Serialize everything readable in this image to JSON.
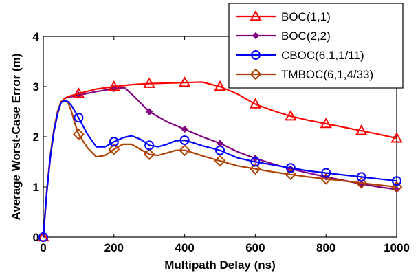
{
  "chart_data": {
    "type": "line",
    "xlabel": "Multipath Delay (ns)",
    "ylabel": "Average Worst-Case Error (m)",
    "xlim": [
      0,
      1000
    ],
    "ylim": [
      0,
      4
    ],
    "xticks": [
      0,
      200,
      400,
      600,
      800,
      1000
    ],
    "yticks": [
      0,
      1,
      2,
      3,
      4
    ],
    "grid": false,
    "legend_position": "top-right",
    "series": [
      {
        "name": "BOC(1,1)",
        "color": "#ff0000",
        "marker": "triangle",
        "x": [
          0,
          10,
          20,
          30,
          40,
          50,
          60,
          70,
          80,
          90,
          100,
          150,
          200,
          250,
          300,
          350,
          400,
          450,
          500,
          550,
          600,
          650,
          700,
          750,
          800,
          850,
          900,
          950,
          1000
        ],
        "y": [
          0,
          0.9,
          1.6,
          2.1,
          2.45,
          2.68,
          2.76,
          2.8,
          2.82,
          2.84,
          2.86,
          2.95,
          3.0,
          3.04,
          3.06,
          3.07,
          3.08,
          3.09,
          3.0,
          2.85,
          2.65,
          2.52,
          2.41,
          2.33,
          2.26,
          2.19,
          2.12,
          2.05,
          1.97
        ],
        "marker_x": [
          0,
          100,
          200,
          300,
          400,
          500,
          600,
          700,
          800,
          900,
          1000
        ],
        "marker_y": [
          0,
          2.86,
          3.0,
          3.06,
          3.08,
          3.0,
          2.65,
          2.41,
          2.26,
          2.12,
          1.97
        ]
      },
      {
        "name": "BOC(2,2)",
        "color": "#800080",
        "marker": "diamond-filled",
        "x": [
          0,
          10,
          20,
          30,
          40,
          50,
          60,
          70,
          80,
          90,
          100,
          150,
          200,
          230,
          250,
          300,
          350,
          400,
          450,
          500,
          550,
          600,
          650,
          700,
          750,
          800,
          850,
          900,
          950,
          1000
        ],
        "y": [
          0,
          0.9,
          1.6,
          2.1,
          2.45,
          2.68,
          2.76,
          2.79,
          2.8,
          2.82,
          2.83,
          2.9,
          2.96,
          2.98,
          2.85,
          2.5,
          2.3,
          2.15,
          2.0,
          1.87,
          1.7,
          1.57,
          1.46,
          1.36,
          1.28,
          1.2,
          1.13,
          1.06,
          1.0,
          0.95
        ],
        "marker_x": [
          100,
          200,
          300,
          400,
          500,
          600,
          700,
          800,
          900,
          1000
        ],
        "marker_y": [
          2.83,
          2.96,
          2.5,
          2.15,
          1.87,
          1.57,
          1.36,
          1.2,
          1.06,
          0.95
        ]
      },
      {
        "name": "CBOC(6,1,1/11)",
        "color": "#0000ff",
        "marker": "circle",
        "x": [
          0,
          10,
          20,
          30,
          40,
          50,
          60,
          70,
          80,
          90,
          100,
          125,
          150,
          175,
          200,
          225,
          250,
          275,
          300,
          325,
          350,
          375,
          400,
          425,
          450,
          500,
          550,
          600,
          650,
          700,
          750,
          800,
          850,
          900,
          950,
          1000
        ],
        "y": [
          0,
          0.9,
          1.6,
          2.1,
          2.45,
          2.68,
          2.72,
          2.7,
          2.62,
          2.5,
          2.38,
          2.05,
          1.8,
          1.8,
          1.9,
          1.98,
          2.02,
          1.95,
          1.83,
          1.8,
          1.85,
          1.92,
          1.93,
          1.88,
          1.82,
          1.73,
          1.58,
          1.5,
          1.44,
          1.38,
          1.32,
          1.28,
          1.24,
          1.2,
          1.16,
          1.12
        ],
        "marker_x": [
          0,
          100,
          200,
          300,
          400,
          500,
          600,
          700,
          800,
          900,
          1000
        ],
        "marker_y": [
          0,
          2.38,
          1.9,
          1.83,
          1.93,
          1.73,
          1.5,
          1.38,
          1.28,
          1.2,
          1.12
        ]
      },
      {
        "name": "TMBOC(6,1,4/33)",
        "color": "#b04000",
        "marker": "diamond",
        "x": [
          0,
          10,
          20,
          30,
          40,
          50,
          60,
          70,
          80,
          90,
          100,
          125,
          150,
          175,
          200,
          225,
          250,
          275,
          300,
          325,
          350,
          375,
          400,
          425,
          450,
          500,
          550,
          600,
          650,
          700,
          750,
          800,
          850,
          900,
          950,
          1000
        ],
        "y": [
          0,
          0.95,
          1.65,
          2.15,
          2.5,
          2.7,
          2.74,
          2.68,
          2.5,
          2.25,
          2.05,
          1.78,
          1.6,
          1.63,
          1.75,
          1.85,
          1.85,
          1.75,
          1.65,
          1.63,
          1.68,
          1.73,
          1.73,
          1.68,
          1.62,
          1.52,
          1.42,
          1.36,
          1.3,
          1.25,
          1.2,
          1.16,
          1.12,
          1.08,
          1.04,
          1.0
        ],
        "marker_x": [
          100,
          200,
          300,
          400,
          500,
          600,
          700,
          800,
          900,
          1000
        ],
        "marker_y": [
          2.05,
          1.75,
          1.65,
          1.73,
          1.52,
          1.36,
          1.25,
          1.16,
          1.08,
          1.0
        ]
      }
    ]
  }
}
